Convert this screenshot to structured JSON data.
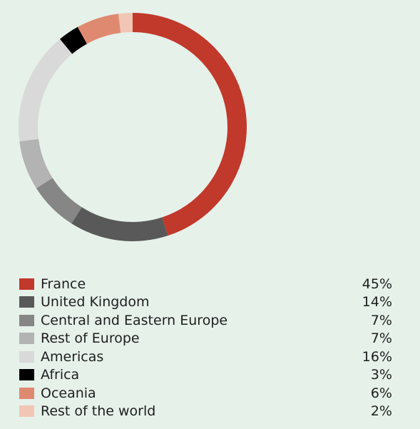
{
  "chart_data": {
    "type": "pie",
    "variant": "donut",
    "unit": "%",
    "categories": [
      "France",
      "United Kingdom",
      "Central and Eastern Europe",
      "Rest of Europe",
      "Americas",
      "Africa",
      "Oceania",
      "Rest of the world"
    ],
    "values": [
      45,
      14,
      7,
      7,
      16,
      3,
      6,
      2
    ],
    "value_labels": [
      "45%",
      "14%",
      "7%",
      "7%",
      "16%",
      "3%",
      "6%",
      "2%"
    ],
    "colors": [
      "#c0392b",
      "#595959",
      "#868686",
      "#b3b3b3",
      "#d9d9d9",
      "#000000",
      "#df8a70",
      "#f2c6b4"
    ],
    "legend": "bottom"
  }
}
